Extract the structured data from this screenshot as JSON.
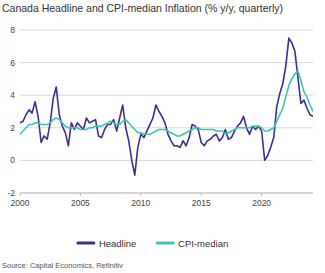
{
  "chart_data": {
    "type": "line",
    "title": "Canada Headline and CPI-median Inflation (% y/y, quarterly)",
    "source": "Source: Capital Economics, Refinitiv",
    "x": [
      2000,
      2000.25,
      2000.5,
      2000.75,
      2001,
      2001.25,
      2001.5,
      2001.75,
      2002,
      2002.25,
      2002.5,
      2002.75,
      2003,
      2003.25,
      2003.5,
      2003.75,
      2004,
      2004.25,
      2004.5,
      2004.75,
      2005,
      2005.25,
      2005.5,
      2005.75,
      2006,
      2006.25,
      2006.5,
      2006.75,
      2007,
      2007.25,
      2007.5,
      2007.75,
      2008,
      2008.25,
      2008.5,
      2008.75,
      2009,
      2009.25,
      2009.5,
      2009.75,
      2010,
      2010.25,
      2010.5,
      2010.75,
      2011,
      2011.25,
      2011.5,
      2011.75,
      2012,
      2012.25,
      2012.5,
      2012.75,
      2013,
      2013.25,
      2013.5,
      2013.75,
      2014,
      2014.25,
      2014.5,
      2014.75,
      2015,
      2015.25,
      2015.5,
      2015.75,
      2016,
      2016.25,
      2016.5,
      2016.75,
      2017,
      2017.25,
      2017.5,
      2017.75,
      2018,
      2018.25,
      2018.5,
      2018.75,
      2019,
      2019.25,
      2019.5,
      2019.75,
      2020,
      2020.25,
      2020.5,
      2020.75,
      2021,
      2021.25,
      2021.5,
      2021.75,
      2022,
      2022.25,
      2022.5,
      2022.75,
      2023,
      2023.25,
      2023.5,
      2023.75,
      2024,
      2024.25
    ],
    "series": [
      {
        "name": "Headline",
        "color": "#3b2f8f",
        "values": [
          2.3,
          2.4,
          2.8,
          3.1,
          2.9,
          3.6,
          2.7,
          1.1,
          1.5,
          1.3,
          2.3,
          3.8,
          4.5,
          2.8,
          2.1,
          1.7,
          0.9,
          2.3,
          1.9,
          2.3,
          2.1,
          1.9,
          2.6,
          2.3,
          2.4,
          2.5,
          1.5,
          1.4,
          1.9,
          2.2,
          2.2,
          2.5,
          1.8,
          2.6,
          3.4,
          2.0,
          1.2,
          0.0,
          -0.9,
          0.8,
          1.6,
          1.4,
          1.8,
          2.2,
          2.6,
          3.4,
          3.0,
          2.7,
          2.3,
          1.6,
          1.2,
          0.9,
          0.9,
          0.8,
          1.2,
          0.9,
          1.4,
          2.2,
          2.1,
          1.9,
          1.1,
          0.9,
          1.2,
          1.3,
          1.5,
          1.6,
          1.2,
          1.4,
          1.9,
          1.3,
          1.4,
          1.8,
          2.1,
          2.3,
          2.7,
          2.0,
          1.6,
          2.1,
          1.9,
          2.1,
          1.8,
          0.0,
          0.3,
          0.8,
          1.4,
          3.3,
          4.1,
          4.7,
          5.8,
          7.5,
          7.2,
          6.7,
          5.1,
          3.5,
          3.7,
          3.2,
          2.8,
          2.7
        ]
      },
      {
        "name": "CPI-median",
        "color": "#3cc5b3",
        "values": [
          1.6,
          1.8,
          2.0,
          2.2,
          2.2,
          2.3,
          2.3,
          2.2,
          2.2,
          2.2,
          2.3,
          2.5,
          2.6,
          2.5,
          2.3,
          2.1,
          2.0,
          2.0,
          2.0,
          2.0,
          1.9,
          1.9,
          1.9,
          2.0,
          2.0,
          2.1,
          2.1,
          2.1,
          2.2,
          2.3,
          2.4,
          2.3,
          2.2,
          2.2,
          2.4,
          2.5,
          2.3,
          2.1,
          1.9,
          1.7,
          1.7,
          1.6,
          1.6,
          1.6,
          1.7,
          1.8,
          1.9,
          1.9,
          1.9,
          1.8,
          1.7,
          1.6,
          1.5,
          1.5,
          1.6,
          1.7,
          1.8,
          1.9,
          2.0,
          2.0,
          1.9,
          1.9,
          1.9,
          1.9,
          1.9,
          1.8,
          1.8,
          1.8,
          1.6,
          1.7,
          1.8,
          1.9,
          2.0,
          2.0,
          2.0,
          2.0,
          2.0,
          2.1,
          2.1,
          2.1,
          2.0,
          1.8,
          1.8,
          1.9,
          2.0,
          2.4,
          2.8,
          3.2,
          3.9,
          4.6,
          5.0,
          5.3,
          5.5,
          4.9,
          4.2,
          3.9,
          3.4,
          3.0
        ]
      }
    ],
    "xlim": [
      2000,
      2024.25
    ],
    "xticks": [
      2000,
      2005,
      2010,
      2015,
      2020
    ],
    "ylim": [
      -2,
      8
    ],
    "yticks": [
      -2,
      0,
      2,
      4,
      6,
      8
    ],
    "grid": true,
    "legend": "bottom"
  }
}
